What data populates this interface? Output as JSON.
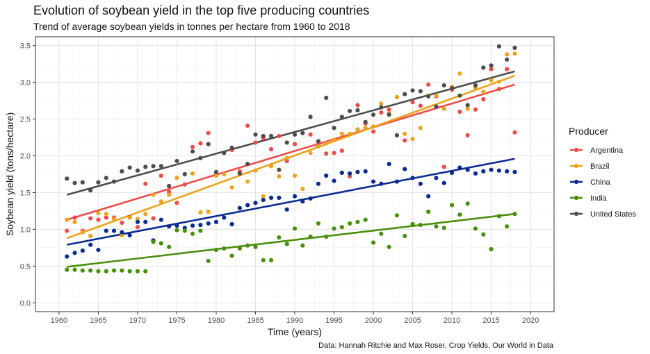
{
  "chart_data": {
    "type": "scatter",
    "title": "Evolution of soybean yield in the top five producing countries",
    "subtitle": "Trend of average soybean yields in tonnes per hectare from 1960 to 2018",
    "xlabel": "Time (years)",
    "ylabel": "Soybean yield (tons/hectare)",
    "caption": "Data: Hannah Ritchie and Max Roser, Crop Yields, Our World in Data",
    "xlim": [
      1957,
      2023
    ],
    "ylim": [
      -0.12,
      3.62
    ],
    "xticks": [
      1960,
      1965,
      1970,
      1975,
      1980,
      1985,
      1990,
      1995,
      2000,
      2005,
      2010,
      2015,
      2020
    ],
    "xtick_labels": [
      "1960",
      "1965",
      "1970",
      "1975",
      "1980",
      "1985",
      "1990",
      "1995",
      "2000",
      "2005",
      "2010",
      "2015",
      "2020"
    ],
    "yticks": [
      0.0,
      0.5,
      1.0,
      1.5,
      2.0,
      2.5,
      3.0,
      3.5
    ],
    "ytick_labels": [
      "0.0",
      "0.5",
      "1.0",
      "1.5",
      "2.0",
      "2.5",
      "3.0",
      "3.5"
    ],
    "grid": true,
    "legend_title": "Producer",
    "legend_position": "right",
    "series": [
      {
        "name": "Argentina",
        "color": "#f04b4b",
        "trend": [
          [
            1961,
            1.13
          ],
          [
            2018,
            2.97
          ]
        ],
        "points": [
          [
            1961,
            0.98
          ],
          [
            1962,
            1.16
          ],
          [
            1963,
            0.98
          ],
          [
            1964,
            1.15
          ],
          [
            1965,
            1.13
          ],
          [
            1966,
            1.16
          ],
          [
            1967,
            1.16
          ],
          [
            1968,
            1.09
          ],
          [
            1969,
            1.17
          ],
          [
            1970,
            1.03
          ],
          [
            1971,
            1.62
          ],
          [
            1972,
            1.15
          ],
          [
            1973,
            1.73
          ],
          [
            1974,
            1.51
          ],
          [
            1975,
            1.36
          ],
          [
            1976,
            1.61
          ],
          [
            1977,
            2.12
          ],
          [
            1978,
            2.17
          ],
          [
            1979,
            2.31
          ],
          [
            1980,
            1.75
          ],
          [
            1981,
            2.04
          ],
          [
            1982,
            2.08
          ],
          [
            1983,
            1.79
          ],
          [
            1984,
            2.41
          ],
          [
            1985,
            2.18
          ],
          [
            1986,
            2.24
          ],
          [
            1987,
            2.09
          ],
          [
            1988,
            2.27
          ],
          [
            1989,
            1.93
          ],
          [
            1990,
            2.16
          ],
          [
            1991,
            2.31
          ],
          [
            1992,
            2.29
          ],
          [
            1993,
            2.16
          ],
          [
            1994,
            2.03
          ],
          [
            1995,
            2.04
          ],
          [
            1996,
            2.07
          ],
          [
            1997,
            1.72
          ],
          [
            1998,
            2.69
          ],
          [
            1999,
            2.44
          ],
          [
            2000,
            2.33
          ],
          [
            2001,
            2.59
          ],
          [
            2002,
            2.63
          ],
          [
            2003,
            2.8
          ],
          [
            2004,
            2.21
          ],
          [
            2005,
            2.73
          ],
          [
            2006,
            2.68
          ],
          [
            2007,
            2.97
          ],
          [
            2008,
            2.81
          ],
          [
            2009,
            1.85
          ],
          [
            2010,
            2.9
          ],
          [
            2011,
            2.6
          ],
          [
            2012,
            2.28
          ],
          [
            2013,
            2.63
          ],
          [
            2014,
            2.77
          ],
          [
            2015,
            3.18
          ],
          [
            2016,
            2.91
          ],
          [
            2017,
            3.18
          ],
          [
            2018,
            2.32
          ]
        ]
      },
      {
        "name": "Brazil",
        "color": "#eba41d",
        "trend": [
          [
            1961,
            0.88
          ],
          [
            2018,
            3.09
          ]
        ],
        "points": [
          [
            1961,
            1.13
          ],
          [
            1962,
            1.1
          ],
          [
            1963,
            0.96
          ],
          [
            1964,
            0.91
          ],
          [
            1965,
            1.22
          ],
          [
            1966,
            1.21
          ],
          [
            1967,
            1.14
          ],
          [
            1968,
            0.92
          ],
          [
            1969,
            1.16
          ],
          [
            1970,
            1.14
          ],
          [
            1971,
            1.21
          ],
          [
            1972,
            1.47
          ],
          [
            1973,
            1.38
          ],
          [
            1974,
            1.47
          ],
          [
            1975,
            1.7
          ],
          [
            1976,
            1.75
          ],
          [
            1977,
            1.76
          ],
          [
            1978,
            1.23
          ],
          [
            1979,
            1.24
          ],
          [
            1980,
            1.73
          ],
          [
            1981,
            1.75
          ],
          [
            1982,
            1.57
          ],
          [
            1983,
            1.76
          ],
          [
            1984,
            1.65
          ],
          [
            1985,
            1.8
          ],
          [
            1986,
            1.45
          ],
          [
            1987,
            1.86
          ],
          [
            1988,
            1.72
          ],
          [
            1989,
            1.97
          ],
          [
            1990,
            1.73
          ],
          [
            1991,
            1.55
          ],
          [
            1992,
            2.04
          ],
          [
            1993,
            2.13
          ],
          [
            1994,
            2.17
          ],
          [
            1995,
            2.22
          ],
          [
            1996,
            2.3
          ],
          [
            1997,
            2.3
          ],
          [
            1998,
            2.36
          ],
          [
            1999,
            2.38
          ],
          [
            2000,
            2.4
          ],
          [
            2001,
            2.71
          ],
          [
            2002,
            2.58
          ],
          [
            2003,
            2.8
          ],
          [
            2004,
            2.3
          ],
          [
            2005,
            2.23
          ],
          [
            2006,
            2.38
          ],
          [
            2007,
            2.82
          ],
          [
            2008,
            2.82
          ],
          [
            2009,
            2.64
          ],
          [
            2010,
            2.94
          ],
          [
            2011,
            3.12
          ],
          [
            2012,
            2.64
          ],
          [
            2013,
            2.93
          ],
          [
            2014,
            2.87
          ],
          [
            2015,
            3.03
          ],
          [
            2016,
            3.01
          ],
          [
            2017,
            3.38
          ],
          [
            2018,
            3.39
          ]
        ]
      },
      {
        "name": "China",
        "color": "#0a2b8f",
        "trend": [
          [
            1961,
            0.79
          ],
          [
            2018,
            1.96
          ]
        ],
        "points": [
          [
            1961,
            0.63
          ],
          [
            1962,
            0.68
          ],
          [
            1963,
            0.71
          ],
          [
            1964,
            0.79
          ],
          [
            1965,
            0.72
          ],
          [
            1966,
            0.98
          ],
          [
            1967,
            0.98
          ],
          [
            1968,
            0.96
          ],
          [
            1969,
            0.92
          ],
          [
            1970,
            1.1
          ],
          [
            1971,
            1.1
          ],
          [
            1972,
            0.85
          ],
          [
            1973,
            1.13
          ],
          [
            1974,
            1.04
          ],
          [
            1975,
            1.05
          ],
          [
            1976,
            1.02
          ],
          [
            1977,
            1.05
          ],
          [
            1978,
            1.06
          ],
          [
            1979,
            1.08
          ],
          [
            1980,
            1.1
          ],
          [
            1981,
            1.16
          ],
          [
            1982,
            1.07
          ],
          [
            1983,
            1.29
          ],
          [
            1984,
            1.33
          ],
          [
            1985,
            1.36
          ],
          [
            1986,
            1.4
          ],
          [
            1987,
            1.43
          ],
          [
            1988,
            1.43
          ],
          [
            1989,
            1.27
          ],
          [
            1990,
            1.45
          ],
          [
            1991,
            1.38
          ],
          [
            1992,
            1.42
          ],
          [
            1993,
            1.62
          ],
          [
            1994,
            1.73
          ],
          [
            1995,
            1.66
          ],
          [
            1996,
            1.77
          ],
          [
            1997,
            1.76
          ],
          [
            1998,
            1.78
          ],
          [
            1999,
            1.79
          ],
          [
            2000,
            1.65
          ],
          [
            2001,
            1.62
          ],
          [
            2002,
            1.89
          ],
          [
            2003,
            1.65
          ],
          [
            2004,
            1.82
          ],
          [
            2005,
            1.7
          ],
          [
            2006,
            1.62
          ],
          [
            2007,
            1.45
          ],
          [
            2008,
            1.7
          ],
          [
            2009,
            1.63
          ],
          [
            2010,
            1.77
          ],
          [
            2011,
            1.84
          ],
          [
            2012,
            1.81
          ],
          [
            2013,
            1.76
          ],
          [
            2014,
            1.79
          ],
          [
            2015,
            1.81
          ],
          [
            2016,
            1.8
          ],
          [
            2017,
            1.79
          ],
          [
            2018,
            1.78
          ]
        ]
      },
      {
        "name": "India",
        "color": "#4a8f0a",
        "trend": [
          [
            1961,
            0.49
          ],
          [
            2018,
            1.21
          ]
        ],
        "points": [
          [
            1961,
            0.45
          ],
          [
            1962,
            0.45
          ],
          [
            1963,
            0.44
          ],
          [
            1964,
            0.44
          ],
          [
            1965,
            0.43
          ],
          [
            1966,
            0.43
          ],
          [
            1967,
            0.44
          ],
          [
            1968,
            0.44
          ],
          [
            1969,
            0.43
          ],
          [
            1970,
            0.43
          ],
          [
            1971,
            0.43
          ],
          [
            1972,
            0.83
          ],
          [
            1973,
            0.81
          ],
          [
            1974,
            0.76
          ],
          [
            1975,
            0.99
          ],
          [
            1976,
            0.98
          ],
          [
            1977,
            0.94
          ],
          [
            1978,
            0.98
          ],
          [
            1979,
            0.57
          ],
          [
            1980,
            0.72
          ],
          [
            1981,
            0.74
          ],
          [
            1982,
            0.64
          ],
          [
            1983,
            0.74
          ],
          [
            1984,
            0.78
          ],
          [
            1985,
            0.76
          ],
          [
            1986,
            0.58
          ],
          [
            1987,
            0.58
          ],
          [
            1988,
            0.89
          ],
          [
            1989,
            0.8
          ],
          [
            1990,
            1.01
          ],
          [
            1991,
            0.78
          ],
          [
            1992,
            0.9
          ],
          [
            1993,
            1.08
          ],
          [
            1994,
            0.9
          ],
          [
            1995,
            1.01
          ],
          [
            1996,
            1.03
          ],
          [
            1997,
            1.08
          ],
          [
            1998,
            1.1
          ],
          [
            1999,
            1.13
          ],
          [
            2000,
            0.82
          ],
          [
            2001,
            0.94
          ],
          [
            2002,
            0.76
          ],
          [
            2003,
            1.19
          ],
          [
            2004,
            0.91
          ],
          [
            2005,
            1.07
          ],
          [
            2006,
            1.06
          ],
          [
            2007,
            1.24
          ],
          [
            2008,
            1.04
          ],
          [
            2009,
            1.02
          ],
          [
            2010,
            1.33
          ],
          [
            2011,
            1.2
          ],
          [
            2012,
            1.35
          ],
          [
            2013,
            1.01
          ],
          [
            2014,
            0.93
          ],
          [
            2015,
            0.73
          ],
          [
            2016,
            1.18
          ],
          [
            2017,
            1.04
          ],
          [
            2018,
            1.21
          ]
        ]
      },
      {
        "name": "United States",
        "color": "#4d4d4d",
        "trend": [
          [
            1961,
            1.47
          ],
          [
            2018,
            3.15
          ]
        ],
        "points": [
          [
            1961,
            1.69
          ],
          [
            1962,
            1.63
          ],
          [
            1963,
            1.64
          ],
          [
            1964,
            1.53
          ],
          [
            1965,
            1.64
          ],
          [
            1966,
            1.7
          ],
          [
            1967,
            1.65
          ],
          [
            1968,
            1.79
          ],
          [
            1969,
            1.84
          ],
          [
            1970,
            1.8
          ],
          [
            1971,
            1.85
          ],
          [
            1972,
            1.86
          ],
          [
            1973,
            1.86
          ],
          [
            1974,
            1.59
          ],
          [
            1975,
            1.93
          ],
          [
            1976,
            1.75
          ],
          [
            1977,
            2.06
          ],
          [
            1978,
            1.97
          ],
          [
            1979,
            2.16
          ],
          [
            1980,
            1.78
          ],
          [
            1981,
            2.04
          ],
          [
            1982,
            2.11
          ],
          [
            1983,
            1.76
          ],
          [
            1984,
            1.89
          ],
          [
            1985,
            2.29
          ],
          [
            1986,
            2.27
          ],
          [
            1987,
            2.27
          ],
          [
            1988,
            1.81
          ],
          [
            1989,
            2.18
          ],
          [
            1990,
            2.29
          ],
          [
            1991,
            2.31
          ],
          [
            1992,
            2.53
          ],
          [
            1993,
            2.2
          ],
          [
            1994,
            2.79
          ],
          [
            1995,
            2.38
          ],
          [
            1996,
            2.53
          ],
          [
            1997,
            2.61
          ],
          [
            1998,
            2.62
          ],
          [
            1999,
            2.46
          ],
          [
            2000,
            2.56
          ],
          [
            2001,
            2.66
          ],
          [
            2002,
            2.56
          ],
          [
            2003,
            2.28
          ],
          [
            2004,
            2.84
          ],
          [
            2005,
            2.89
          ],
          [
            2006,
            2.88
          ],
          [
            2007,
            2.81
          ],
          [
            2008,
            2.67
          ],
          [
            2009,
            2.96
          ],
          [
            2010,
            2.92
          ],
          [
            2011,
            2.82
          ],
          [
            2012,
            2.69
          ],
          [
            2013,
            2.96
          ],
          [
            2014,
            3.2
          ],
          [
            2015,
            3.23
          ],
          [
            2016,
            3.49
          ],
          [
            2017,
            3.31
          ],
          [
            2018,
            3.47
          ]
        ]
      }
    ]
  }
}
